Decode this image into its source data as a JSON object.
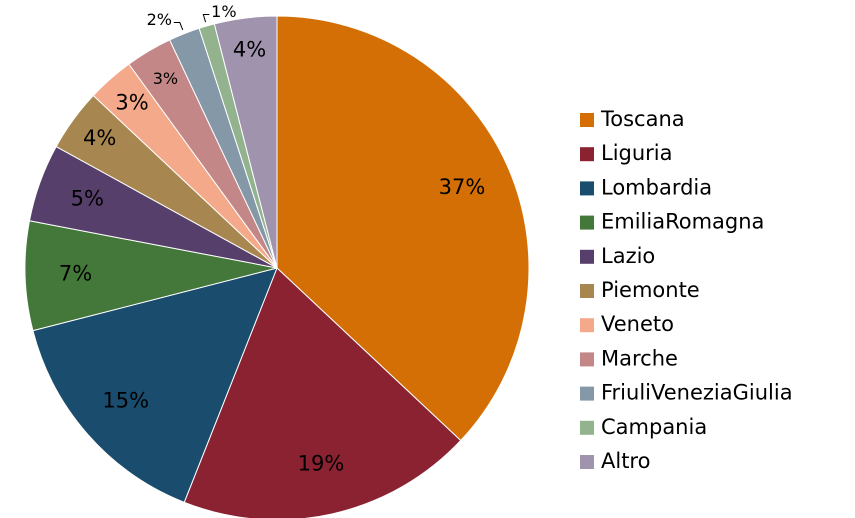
{
  "chart_data": {
    "type": "pie",
    "categories": [
      "Toscana",
      "Liguria",
      "Lombardia",
      "EmiliaRomagna",
      "Lazio",
      "Piemonte",
      "Veneto",
      "Marche",
      "FriuliVeneziaGiulia",
      "Campania",
      "Altro"
    ],
    "values": [
      37,
      19,
      15,
      7,
      5,
      4,
      3,
      3,
      2,
      1,
      4
    ],
    "value_labels": [
      "37%",
      "19%",
      "15%",
      "7%",
      "5%",
      "4%",
      "3%",
      "3%",
      "2%",
      "1%",
      "4%"
    ],
    "colors": [
      "#d46f06",
      "#8b2232",
      "#1a4c6e",
      "#43783a",
      "#573f6b",
      "#a8864f",
      "#f4a98a",
      "#c48787",
      "#8598a8",
      "#93b38f",
      "#9f93ae"
    ],
    "legend": "right"
  }
}
